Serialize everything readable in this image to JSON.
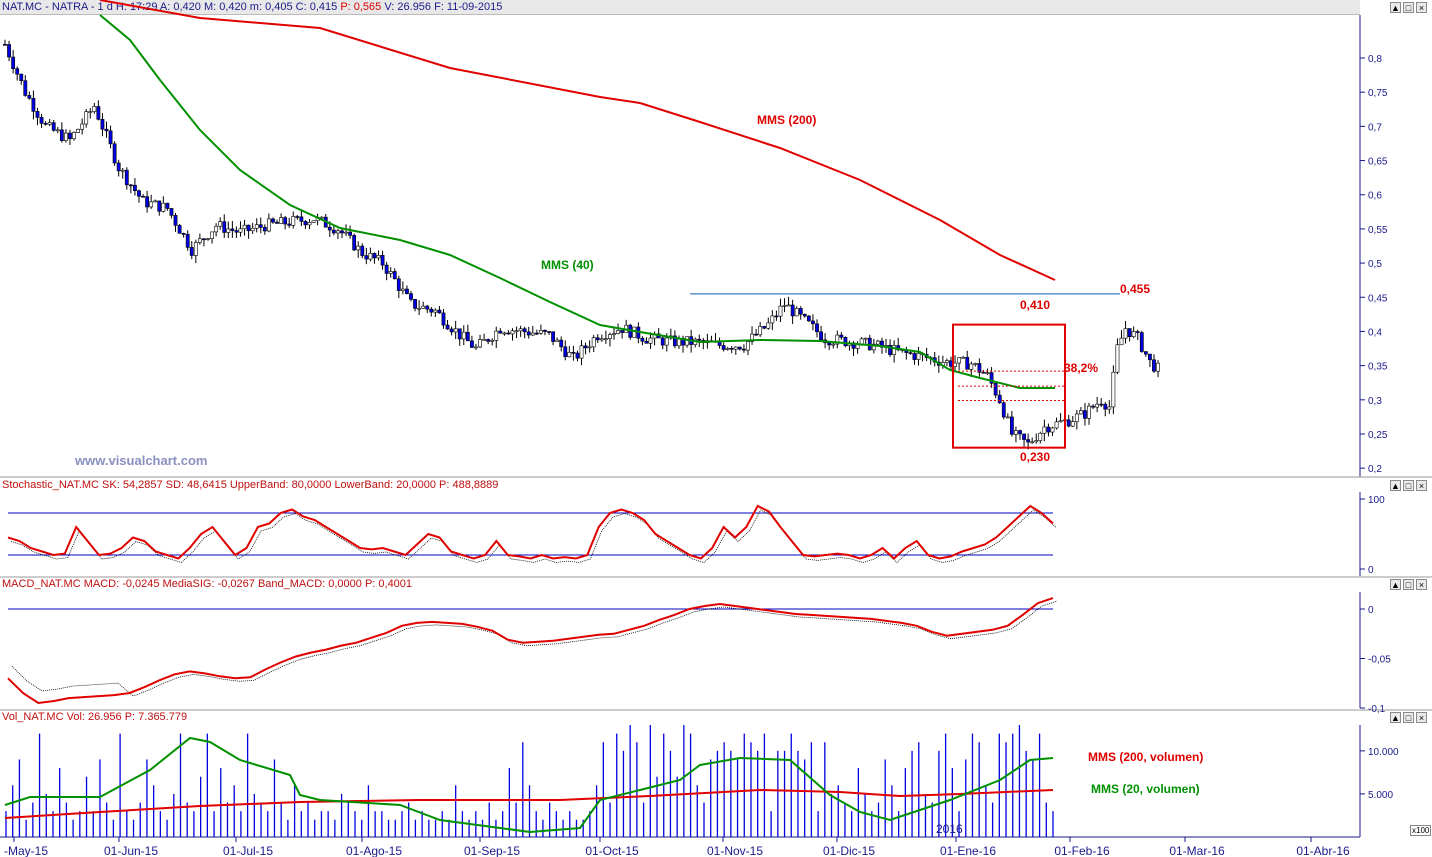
{
  "header": {
    "main": "NAT.MC - NATRA - 1 d H: 17:29 A: 0,420 M: 0,420 m: 0,405 C: 0,415",
    "p_label": "P: 0,565",
    "tail": "V: 26.956 F: 11-09-2015",
    "window_buttons": [
      "▲",
      "□",
      "×"
    ]
  },
  "panels": {
    "stochastic": {
      "title": "Stochastic_NAT.MC SK: 54,2857 SD: 48,6415 UpperBand: 80,0000 LowerBand: 20,0000 P: 488,8889"
    },
    "macd": {
      "title": "MACD_NAT.MC MACD: -0,0245 MediaSIG: -0,0267 Band_MACD: 0,0000 P: 0,4001"
    },
    "volume": {
      "title": "Vol_NAT.MC Vol: 26.956 P: 7.365.779"
    }
  },
  "watermark": "www.visualchart.com",
  "year_label": "2016",
  "vol_scale_tag": "x100",
  "colors": {
    "up_candle": "#ffffff",
    "down_candle": "#0000e0",
    "mma200": "#e00000",
    "mma40": "#009000",
    "axis": "#1a1a8c",
    "stoch_k": "#e00000",
    "band": "#0000c0",
    "vol_bar": "#0000e0"
  },
  "chart_data": [
    {
      "type": "candlestick",
      "title": "",
      "x_labels": [
        "-May-15",
        "01-Jun-15",
        "01-Jul-15",
        "01-Ago-15",
        "01-Sep-15",
        "01-Oct-15",
        "01-Nov-15",
        "01-Dic-15",
        "01-Ene-16",
        "01-Feb-16",
        "01-Mar-16",
        "01-Abr-16"
      ],
      "y_ticks": [
        "0,8",
        "0,75",
        "0,7",
        "0,65",
        "0,6",
        "0,55",
        "0,5",
        "0,45",
        "0,4",
        "0,35",
        "0,3",
        "0,25",
        "0,2"
      ],
      "ylim": [
        0.19,
        0.86
      ],
      "close_path": [
        [
          0,
          0.82
        ],
        [
          5,
          0.75
        ],
        [
          10,
          0.7
        ],
        [
          16,
          0.68
        ],
        [
          22,
          0.73
        ],
        [
          28,
          0.64
        ],
        [
          34,
          0.59
        ],
        [
          40,
          0.58
        ],
        [
          46,
          0.52
        ],
        [
          52,
          0.555
        ],
        [
          58,
          0.545
        ],
        [
          64,
          0.555
        ],
        [
          70,
          0.56
        ],
        [
          76,
          0.565
        ],
        [
          82,
          0.55
        ],
        [
          88,
          0.515
        ],
        [
          93,
          0.5
        ],
        [
          96,
          0.475
        ],
        [
          100,
          0.44
        ],
        [
          106,
          0.43
        ],
        [
          112,
          0.395
        ],
        [
          116,
          0.375
        ],
        [
          122,
          0.405
        ],
        [
          128,
          0.4
        ],
        [
          134,
          0.395
        ],
        [
          140,
          0.36
        ],
        [
          146,
          0.395
        ],
        [
          152,
          0.405
        ],
        [
          158,
          0.39
        ],
        [
          164,
          0.385
        ],
        [
          170,
          0.384
        ],
        [
          176,
          0.38
        ],
        [
          182,
          0.38
        ],
        [
          188,
          0.41
        ],
        [
          192,
          0.44
        ],
        [
          196,
          0.42
        ],
        [
          202,
          0.39
        ],
        [
          208,
          0.385
        ],
        [
          214,
          0.38
        ],
        [
          220,
          0.37
        ],
        [
          226,
          0.363
        ],
        [
          232,
          0.355
        ],
        [
          238,
          0.353
        ],
        [
          242,
          0.335
        ],
        [
          245,
          0.3
        ],
        [
          248,
          0.25
        ],
        [
          252,
          0.235
        ],
        [
          256,
          0.26
        ],
        [
          262,
          0.27
        ],
        [
          266,
          0.28
        ],
        [
          270,
          0.3
        ],
        [
          272,
          0.29
        ],
        [
          274,
          0.375
        ],
        [
          276,
          0.405
        ],
        [
          279,
          0.39
        ],
        [
          282,
          0.355
        ],
        [
          284,
          0.345
        ]
      ],
      "annotations": [
        {
          "text": "MMS (200)",
          "color": "#e00000"
        },
        {
          "text": "MMS (40)",
          "color": "#009000"
        },
        {
          "text": "0,455",
          "color": "#e00000"
        },
        {
          "text": "0,410",
          "color": "#e00000"
        },
        {
          "text": "38,2%",
          "color": "#e00000"
        },
        {
          "text": "0,230",
          "color": "#e00000"
        }
      ],
      "levels": {
        "resistance": 0.455,
        "box_high": 0.41,
        "box_low": 0.23,
        "fib_382": 0.341
      }
    },
    {
      "type": "line",
      "title": "",
      "y_ticks": [
        "100",
        "0"
      ],
      "ylim": [
        -10,
        110
      ],
      "bands": [
        80,
        20
      ],
      "series": [
        {
          "values": [
            45,
            40,
            30,
            25,
            20,
            22,
            60,
            40,
            20,
            22,
            30,
            45,
            40,
            25,
            20,
            15,
            30,
            50,
            60,
            40,
            20,
            30,
            60,
            65,
            80,
            85,
            75,
            70,
            60,
            50,
            40,
            30,
            28,
            30,
            25,
            20,
            35,
            50,
            45,
            25,
            20,
            15,
            20,
            40,
            20,
            18,
            15,
            20,
            15,
            17,
            15,
            20,
            60,
            80,
            85,
            80,
            70,
            50,
            40,
            30,
            20,
            15,
            30,
            60,
            45,
            60,
            90,
            82,
            60,
            40,
            20,
            18,
            20,
            22,
            20,
            15,
            20,
            30,
            15,
            30,
            40,
            20,
            15,
            18,
            25,
            30,
            35,
            45,
            60,
            75,
            90,
            80,
            65
          ]
        }
      ]
    },
    {
      "type": "line",
      "title": "",
      "y_ticks": [
        "0",
        "-0,05",
        "-0,1"
      ],
      "ylim": [
        -0.1,
        0.01
      ],
      "series": [
        {
          "values": [
            -0.07,
            -0.085,
            -0.095,
            -0.093,
            -0.09,
            -0.089,
            -0.088,
            -0.087,
            -0.085,
            -0.079,
            -0.072,
            -0.066,
            -0.063,
            -0.065,
            -0.068,
            -0.07,
            -0.069,
            -0.061,
            -0.054,
            -0.048,
            -0.044,
            -0.041,
            -0.037,
            -0.034,
            -0.029,
            -0.024,
            -0.017,
            -0.014,
            -0.013,
            -0.014,
            -0.015,
            -0.018,
            -0.022,
            -0.031,
            -0.034,
            -0.033,
            -0.032,
            -0.03,
            -0.028,
            -0.026,
            -0.025,
            -0.021,
            -0.017,
            -0.011,
            -0.006,
            0.0,
            0.003,
            0.005,
            0.003,
            0.001,
            -0.001,
            -0.003,
            -0.005,
            -0.006,
            -0.007,
            -0.008,
            -0.009,
            -0.01,
            -0.012,
            -0.014,
            -0.017,
            -0.023,
            -0.027,
            -0.025,
            -0.023,
            -0.021,
            -0.017,
            -0.006,
            0.006,
            0.011
          ]
        }
      ]
    },
    {
      "type": "bar",
      "title": "",
      "y_ticks": [
        "10.000",
        "5.000"
      ],
      "ylim": [
        0,
        13000
      ],
      "series": [
        {
          "name": "MMS (200, volumen)",
          "values": [
            2200,
            2500,
            3800,
            4200,
            4500,
            5000,
            5300
          ]
        },
        {
          "name": "MMS (20, volumen)",
          "values": [
            3500,
            6000,
            12000,
            11000,
            4000,
            1500,
            4500,
            11000,
            8000,
            6000,
            4500,
            9500,
            10000
          ]
        }
      ],
      "volume_heights": [
        3,
        6,
        9,
        2,
        4,
        12,
        5,
        3,
        8,
        4,
        2,
        3,
        7,
        3,
        9,
        4,
        2,
        12,
        3,
        2,
        4,
        9,
        6,
        3,
        2,
        5,
        12,
        4,
        3,
        7,
        12,
        3,
        8,
        4,
        6,
        3,
        12,
        5,
        4,
        3,
        9,
        4,
        2,
        6,
        3,
        4,
        2,
        3,
        3,
        2,
        5,
        4,
        3,
        2,
        6,
        3,
        3,
        2,
        2,
        3,
        4,
        2,
        3,
        2,
        2,
        3,
        2,
        6,
        3,
        2,
        3,
        2,
        4,
        2,
        3,
        8,
        4,
        11,
        6,
        3,
        2,
        4,
        3,
        2,
        3,
        2,
        2,
        3,
        6,
        11,
        4,
        12,
        10,
        13,
        11,
        4,
        13,
        7,
        12,
        10,
        7,
        13,
        12,
        6,
        4,
        9,
        10,
        11,
        10,
        9,
        12,
        11,
        10,
        12,
        3,
        10,
        10,
        12,
        10,
        9,
        11,
        3,
        11,
        5,
        6,
        4,
        3,
        8,
        5,
        3,
        4,
        9,
        6,
        3,
        8,
        10,
        11,
        5,
        4,
        10,
        12,
        8,
        3,
        9,
        12,
        11,
        6,
        4,
        12,
        11,
        12,
        13,
        10,
        9,
        12,
        4,
        3
      ]
    }
  ]
}
